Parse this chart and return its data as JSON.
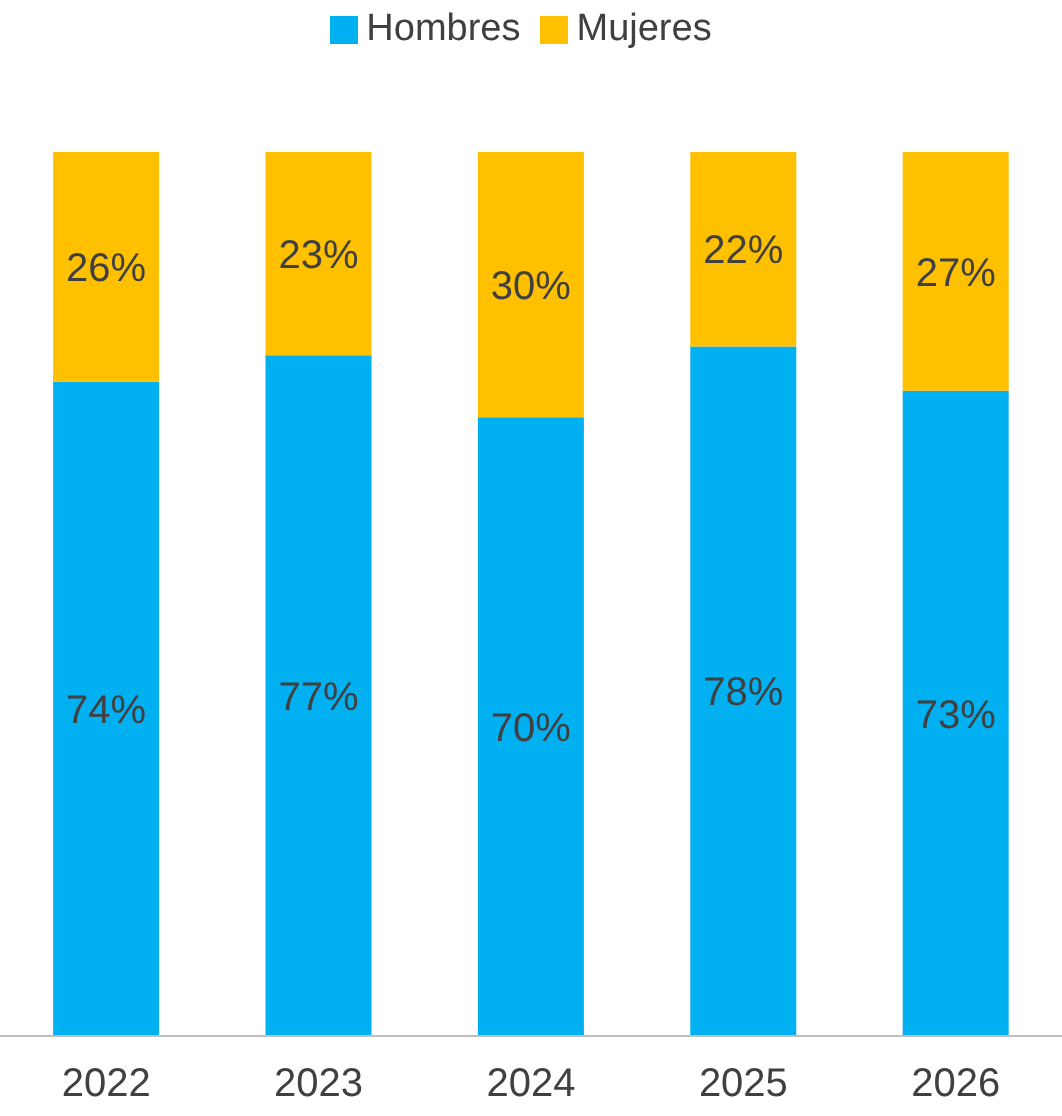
{
  "chart_data": {
    "type": "bar",
    "stacked": true,
    "categories": [
      "2022",
      "2023",
      "2024",
      "2025",
      "2026"
    ],
    "ylim": [
      0,
      100
    ],
    "legend": "top",
    "series": [
      {
        "name": "Hombres",
        "color": "#00b0f0",
        "values": [
          74,
          77,
          70,
          78,
          73
        ],
        "value_labels": [
          "74%",
          "77%",
          "70%",
          "78%",
          "73%"
        ]
      },
      {
        "name": "Mujeres",
        "color": "#ffc000",
        "values": [
          26,
          23,
          30,
          22,
          27
        ],
        "value_labels": [
          "26%",
          "23%",
          "30%",
          "22%",
          "27%"
        ]
      }
    ]
  }
}
